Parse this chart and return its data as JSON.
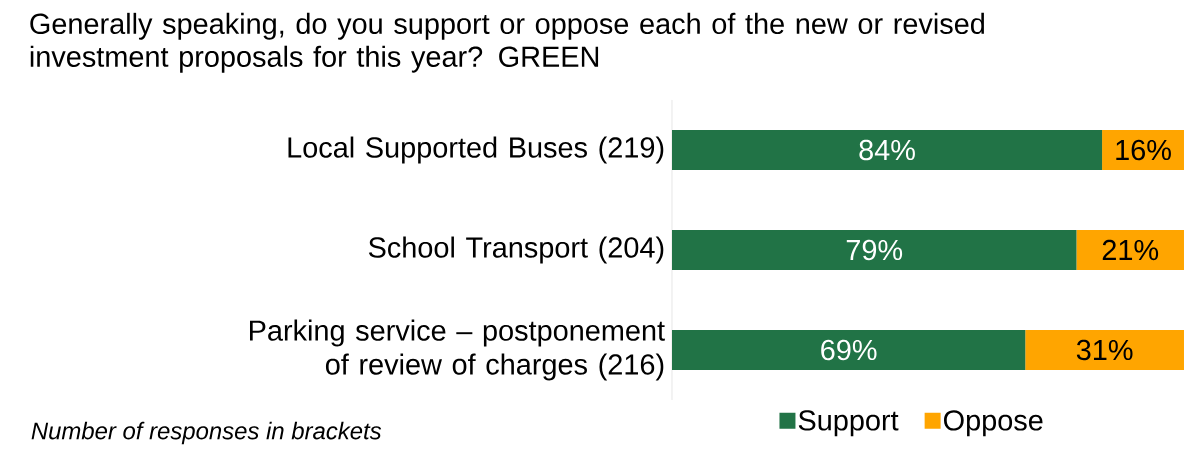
{
  "chart_data": {
    "type": "bar",
    "orientation": "horizontal",
    "stacked": true,
    "title": "Generally speaking, do you support or oppose each of the new or revised investment proposals for this year? GREEN",
    "categories": [
      "Local Supported Buses (219)",
      "School Transport (204)",
      "Parking service – postponement of review of charges (216)"
    ],
    "series": [
      {
        "name": "Support",
        "color": "#217346",
        "values": [
          84,
          79,
          69
        ],
        "value_labels": [
          "84%",
          "79%",
          "69%"
        ]
      },
      {
        "name": "Oppose",
        "color": "#ffa500",
        "values": [
          16,
          21,
          31
        ],
        "value_labels": [
          "16%",
          "21%",
          "31%"
        ]
      }
    ],
    "legend": "bottom",
    "annotations": [
      "Number of responses in brackets"
    ]
  }
}
